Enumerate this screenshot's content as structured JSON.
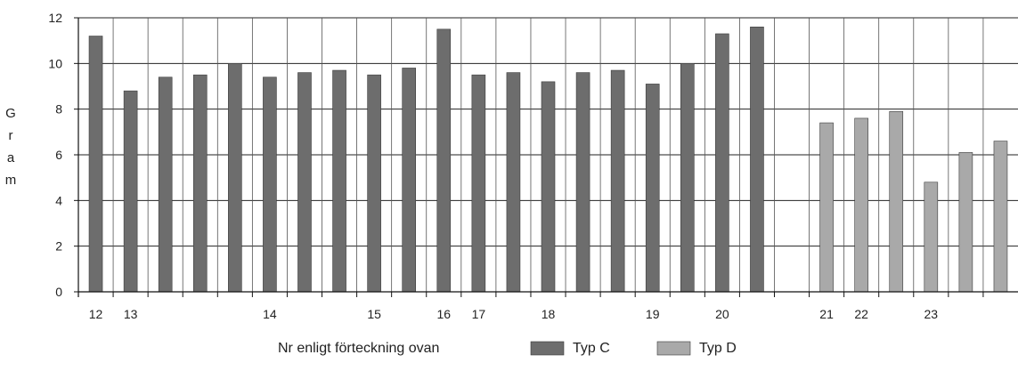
{
  "chart_data": {
    "type": "bar",
    "ylabel": "Gram",
    "xlabel": "Nr enligt förteckning ovan",
    "ylim": [
      0,
      12
    ],
    "yticks": [
      0,
      2,
      4,
      6,
      8,
      10,
      12
    ],
    "grid": true,
    "legend_position": "bottom",
    "colors": {
      "Typ C": "#6d6d6d",
      "Typ D": "#a9a9a9"
    },
    "slots": 27,
    "bars": [
      {
        "slot": 0,
        "value": 11.2,
        "series": "Typ C"
      },
      {
        "slot": 1,
        "value": 8.8,
        "series": "Typ C"
      },
      {
        "slot": 2,
        "value": 9.4,
        "series": "Typ C"
      },
      {
        "slot": 3,
        "value": 9.5,
        "series": "Typ C"
      },
      {
        "slot": 4,
        "value": 10.0,
        "series": "Typ C"
      },
      {
        "slot": 5,
        "value": 9.4,
        "series": "Typ C"
      },
      {
        "slot": 6,
        "value": 9.6,
        "series": "Typ C"
      },
      {
        "slot": 7,
        "value": 9.7,
        "series": "Typ C"
      },
      {
        "slot": 8,
        "value": 9.5,
        "series": "Typ C"
      },
      {
        "slot": 9,
        "value": 9.8,
        "series": "Typ C"
      },
      {
        "slot": 10,
        "value": 11.5,
        "series": "Typ C"
      },
      {
        "slot": 11,
        "value": 9.5,
        "series": "Typ C"
      },
      {
        "slot": 12,
        "value": 9.6,
        "series": "Typ C"
      },
      {
        "slot": 13,
        "value": 9.2,
        "series": "Typ C"
      },
      {
        "slot": 14,
        "value": 9.6,
        "series": "Typ C"
      },
      {
        "slot": 15,
        "value": 9.7,
        "series": "Typ C"
      },
      {
        "slot": 16,
        "value": 9.1,
        "series": "Typ C"
      },
      {
        "slot": 17,
        "value": 10.0,
        "series": "Typ C"
      },
      {
        "slot": 18,
        "value": 11.3,
        "series": "Typ C"
      },
      {
        "slot": 19,
        "value": 11.6,
        "series": "Typ C"
      },
      {
        "slot": 21,
        "value": 7.4,
        "series": "Typ D"
      },
      {
        "slot": 22,
        "value": 7.6,
        "series": "Typ D"
      },
      {
        "slot": 23,
        "value": 7.9,
        "series": "Typ D"
      },
      {
        "slot": 24,
        "value": 4.8,
        "series": "Typ D"
      },
      {
        "slot": 25,
        "value": 6.1,
        "series": "Typ D"
      },
      {
        "slot": 26,
        "value": 6.6,
        "series": "Typ D"
      }
    ],
    "category_labels": [
      {
        "slot": 0,
        "label": "12"
      },
      {
        "slot": 1,
        "label": "13"
      },
      {
        "slot": 5,
        "label": "14"
      },
      {
        "slot": 8,
        "label": "15"
      },
      {
        "slot": 10,
        "label": "16"
      },
      {
        "slot": 11,
        "label": "17"
      },
      {
        "slot": 13,
        "label": "18"
      },
      {
        "slot": 16,
        "label": "19"
      },
      {
        "slot": 18,
        "label": "20"
      },
      {
        "slot": 21,
        "label": "21"
      },
      {
        "slot": 22,
        "label": "22"
      },
      {
        "slot": 24,
        "label": "23"
      }
    ],
    "legend": [
      {
        "label": "Typ C",
        "series": "Typ C"
      },
      {
        "label": "Typ D",
        "series": "Typ D"
      }
    ]
  }
}
